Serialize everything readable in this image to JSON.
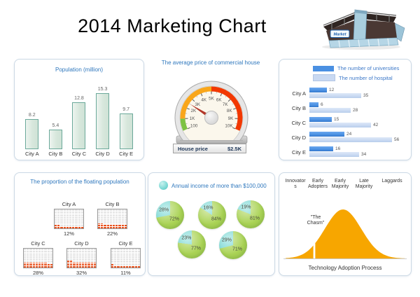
{
  "page": {
    "title": "2014 Marketing Chart"
  },
  "logo": {
    "sign_label": "Market"
  },
  "chart_data": [
    {
      "id": "population",
      "type": "bar",
      "title": "Population (million)",
      "categories": [
        "City A",
        "City B",
        "City C",
        "City D",
        "City E"
      ],
      "values": [
        8.2,
        5.4,
        12.8,
        15.3,
        9.7
      ],
      "ylim": [
        0,
        16
      ],
      "bar_color": "#d7e7dc",
      "bar_border": "#6ba99a"
    },
    {
      "id": "house-price-gauge",
      "type": "gauge",
      "title": "The average price of commercial house",
      "tick_labels": [
        "100",
        "1K",
        "2K",
        "3K",
        "4K",
        "5K",
        "6K",
        "7K",
        "8K",
        "9K",
        "10K"
      ],
      "label": "House price",
      "value_display": "$2.5K",
      "value_tick_index": 2.5,
      "zones": [
        {
          "from_tick": 0,
          "to_tick": 1,
          "color": "#7dc242"
        },
        {
          "from_tick": 1,
          "to_tick": 5,
          "color": "#f9a61a"
        },
        {
          "from_tick": 5,
          "to_tick": 10,
          "color": "#f23800"
        }
      ],
      "needle_color": "#b3372a"
    },
    {
      "id": "universities-hospitals",
      "type": "bar",
      "orientation": "horizontal",
      "categories": [
        "City A",
        "City B",
        "City C",
        "City D",
        "City E"
      ],
      "series": [
        {
          "name": "The number of universities",
          "color": "#4a90e2",
          "values": [
            12,
            6,
            15,
            24,
            16
          ]
        },
        {
          "name": "The number of hospital",
          "color": "#c9d9f2",
          "values": [
            35,
            28,
            42,
            56,
            34
          ]
        }
      ],
      "xlim": [
        0,
        60
      ],
      "legend_position": "top"
    },
    {
      "id": "floating-population",
      "type": "waffle",
      "title": "The proportion of the floating population",
      "categories": [
        "City A",
        "City B",
        "City C",
        "City D",
        "City E"
      ],
      "values": [
        12,
        22,
        28,
        32,
        11
      ],
      "unit": "%",
      "grid": [
        10,
        10
      ],
      "fill_color": "#e8511d",
      "empty_color": "#e4e4e4"
    },
    {
      "id": "annual-income",
      "type": "pie",
      "title": "Annual income of more than $100,000",
      "colors": {
        "highlight": "#7cd9d5",
        "base": "#aad355"
      },
      "unit": "%",
      "pies": [
        {
          "highlight_pct": 28,
          "base_pct": 72
        },
        {
          "highlight_pct": 16,
          "base_pct": 84
        },
        {
          "highlight_pct": 19,
          "base_pct": 81
        },
        {
          "highlight_pct": 23,
          "base_pct": 77
        },
        {
          "highlight_pct": 29,
          "base_pct": 71
        }
      ]
    },
    {
      "id": "technology-adoption",
      "type": "area",
      "subtype": "bell-curve",
      "stages": [
        "Innovators",
        "Early Adopters",
        "Early Majority",
        "Late Majority",
        "Laggards"
      ],
      "annotation": "\"The Chasm\"",
      "caption": "Technology Adoption Process",
      "curve_color": "#f7a600"
    }
  ]
}
